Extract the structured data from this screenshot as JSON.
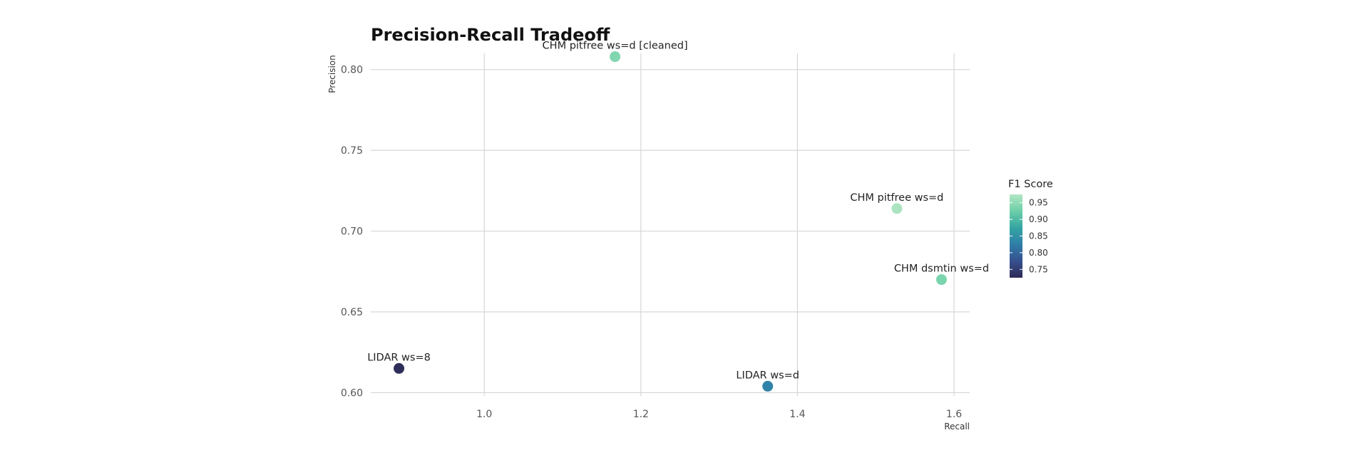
{
  "chart_data": {
    "type": "scatter",
    "title": "Precision-Recall Tradeoff",
    "xlabel": "Recall",
    "ylabel": "Precision",
    "xlim": [
      0.855,
      1.62
    ],
    "ylim": [
      0.598,
      0.81
    ],
    "x_ticks": [
      1.0,
      1.2,
      1.4,
      1.6
    ],
    "x_tick_labels": [
      "1.0",
      "1.2",
      "1.4",
      "1.6"
    ],
    "y_ticks": [
      0.6,
      0.65,
      0.7,
      0.75,
      0.8
    ],
    "y_tick_labels": [
      "0.60",
      "0.65",
      "0.70",
      "0.75",
      "0.80"
    ],
    "grid": true,
    "points": [
      {
        "label": "CHM pitfree ws=d [cleaned]",
        "x": 1.167,
        "y": 0.808,
        "f1": 0.94
      },
      {
        "label": "CHM pitfree ws=d",
        "x": 1.527,
        "y": 0.714,
        "f1": 0.97
      },
      {
        "label": "CHM dsmtin ws=d",
        "x": 1.584,
        "y": 0.67,
        "f1": 0.935
      },
      {
        "label": "LIDAR ws=8",
        "x": 0.891,
        "y": 0.615,
        "f1": 0.73
      },
      {
        "label": "LIDAR ws=d",
        "x": 1.362,
        "y": 0.604,
        "f1": 0.83
      }
    ],
    "color_scale": {
      "title": "F1 Score",
      "min": 0.725,
      "max": 0.975,
      "ticks": [
        0.75,
        0.8,
        0.85,
        0.9,
        0.95
      ],
      "tick_labels": [
        "0.75",
        "0.80",
        "0.85",
        "0.90",
        "0.95"
      ],
      "colors": [
        "#2e2a55",
        "#36508f",
        "#2f7fa8",
        "#35a5a3",
        "#6ccfa8",
        "#b3e6c4"
      ]
    },
    "legend_position": "right"
  }
}
